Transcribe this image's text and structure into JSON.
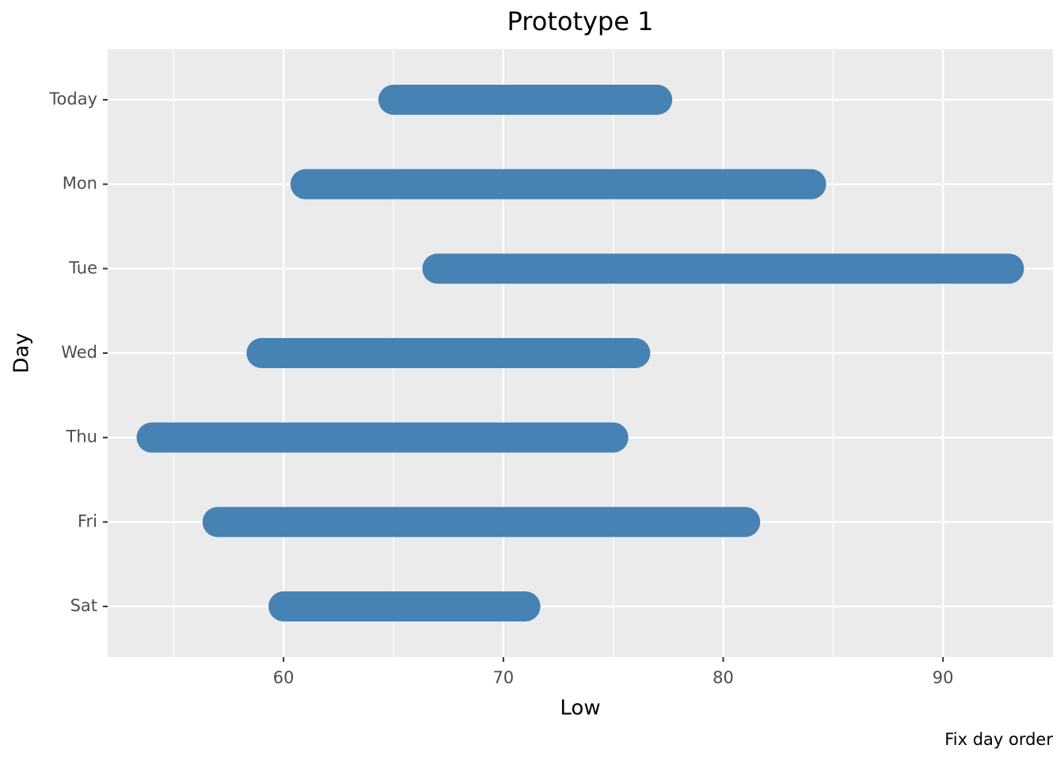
{
  "chart_data": {
    "type": "range_bar",
    "title": "Prototype 1",
    "x_label": "Low",
    "y_label": "Day",
    "caption": "Fix day order",
    "categories": [
      "Today",
      "Mon",
      "Tue",
      "Wed",
      "Thu",
      "Fri",
      "Sat"
    ],
    "low": [
      65,
      61,
      67,
      59,
      54,
      57,
      60
    ],
    "high": [
      77,
      84,
      93,
      76,
      75,
      81,
      71
    ],
    "color": "#4682b4",
    "xlim": [
      52,
      95
    ],
    "xticks": [
      60,
      70,
      80,
      90
    ],
    "grid": true
  }
}
